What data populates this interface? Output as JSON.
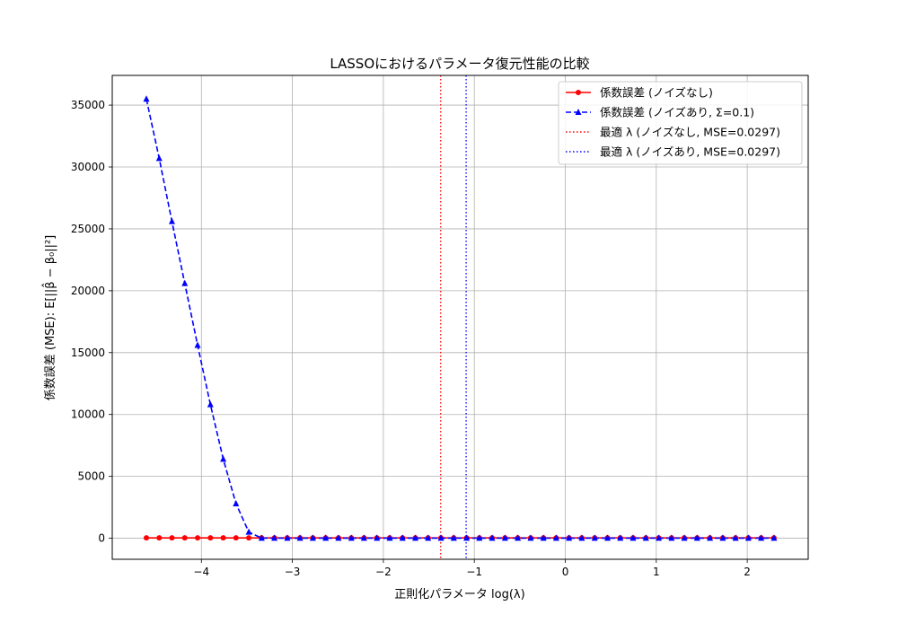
{
  "chart_data": {
    "type": "line",
    "title": "LASSOにおけるパラメータ復元性能の比較",
    "xlabel": "正則化パラメータ log(λ)",
    "ylabel": "係数誤差 (MSE): E[||β̂ − β₀||²]",
    "xlim": [
      -4.98,
      2.67
    ],
    "ylim": [
      -1700,
      37400
    ],
    "xticks": [
      -4,
      -3,
      -2,
      -1,
      0,
      1,
      2
    ],
    "xtick_labels": [
      "−4",
      "−3",
      "−2",
      "−1",
      "0",
      "1",
      "2"
    ],
    "yticks": [
      0,
      5000,
      10000,
      15000,
      20000,
      25000,
      30000,
      35000
    ],
    "ytick_labels": [
      "0",
      "5000",
      "10000",
      "15000",
      "20000",
      "25000",
      "30000",
      "35000"
    ],
    "grid": true,
    "legend_position": "top-right",
    "x": [
      -4.605,
      -4.464,
      -4.324,
      -4.183,
      -4.042,
      -3.901,
      -3.76,
      -3.62,
      -3.479,
      -3.338,
      -3.197,
      -3.056,
      -2.916,
      -2.775,
      -2.634,
      -2.493,
      -2.352,
      -2.212,
      -2.071,
      -1.93,
      -1.789,
      -1.648,
      -1.508,
      -1.367,
      -1.226,
      -1.085,
      -0.944,
      -0.804,
      -0.663,
      -0.522,
      -0.381,
      -0.24,
      -0.1,
      0.041,
      0.182,
      0.323,
      0.464,
      0.604,
      0.745,
      0.886,
      1.027,
      1.168,
      1.308,
      1.449,
      1.59,
      1.731,
      1.872,
      2.012,
      2.153,
      2.294
    ],
    "series": [
      {
        "name": "係数誤差 (ノイズなし)",
        "color": "#ff0000",
        "style": "solid",
        "marker": "circle",
        "values": [
          30,
          30,
          30,
          30,
          30,
          30,
          30,
          30,
          30,
          30,
          30,
          30,
          30,
          30,
          30,
          30,
          30,
          30,
          30,
          30,
          30,
          30,
          30,
          30,
          30,
          30,
          30,
          30,
          30,
          30,
          30,
          30,
          30,
          30,
          30,
          30,
          30,
          30,
          30,
          30,
          30,
          30,
          30,
          30,
          30,
          30,
          30,
          30,
          30,
          30
        ]
      },
      {
        "name": "係数誤差 (ノイズあり, Σ=0.1)",
        "color": "#0000ff",
        "style": "dashed",
        "marker": "triangle",
        "values": [
          35500,
          30700,
          25600,
          20600,
          15600,
          10800,
          6400,
          2800,
          500,
          10,
          10,
          10,
          10,
          10,
          10,
          10,
          10,
          10,
          10,
          10,
          10,
          10,
          10,
          10,
          10,
          10,
          10,
          10,
          10,
          10,
          10,
          10,
          10,
          10,
          10,
          10,
          10,
          10,
          10,
          10,
          10,
          10,
          10,
          10,
          10,
          10,
          10,
          10,
          10,
          10
        ]
      }
    ],
    "vlines": [
      {
        "name": "最適 λ (ノイズなし, MSE=0.0297)",
        "x": -1.37,
        "color": "#ff0000",
        "style": "dotted"
      },
      {
        "name": "最適 λ (ノイズあり, MSE=0.0297)",
        "x": -1.09,
        "color": "#0000ff",
        "style": "dotted"
      }
    ]
  }
}
